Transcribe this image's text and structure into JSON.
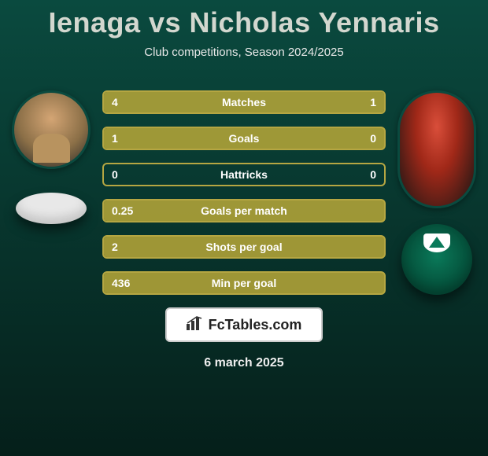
{
  "title": "Ienaga vs Nicholas Yennaris",
  "subtitle": "Club competitions, Season 2024/2025",
  "date": "6 march 2025",
  "footer_brand": "FcTables.com",
  "colors": {
    "border_color": "#b5a642",
    "fill_color": "#b8a838",
    "title_color": "#d3d7cf",
    "bg_top": "#0a4a3f",
    "bg_bottom": "#051f1a"
  },
  "stats": [
    {
      "label": "Matches",
      "left_val": "4",
      "right_val": "1",
      "left_pct": 80,
      "right_pct": 20
    },
    {
      "label": "Goals",
      "left_val": "1",
      "right_val": "0",
      "left_pct": 100,
      "right_pct": 0
    },
    {
      "label": "Hattricks",
      "left_val": "0",
      "right_val": "0",
      "left_pct": 0,
      "right_pct": 0
    },
    {
      "label": "Goals per match",
      "left_val": "0.25",
      "right_val": "",
      "left_pct": 100,
      "right_pct": 0
    },
    {
      "label": "Shots per goal",
      "left_val": "2",
      "right_val": "",
      "left_pct": 100,
      "right_pct": 0
    },
    {
      "label": "Min per goal",
      "left_val": "436",
      "right_val": "",
      "left_pct": 100,
      "right_pct": 0
    }
  ],
  "player_left": {
    "name": "Ienaga"
  },
  "player_right": {
    "name": "Nicholas Yennaris"
  }
}
